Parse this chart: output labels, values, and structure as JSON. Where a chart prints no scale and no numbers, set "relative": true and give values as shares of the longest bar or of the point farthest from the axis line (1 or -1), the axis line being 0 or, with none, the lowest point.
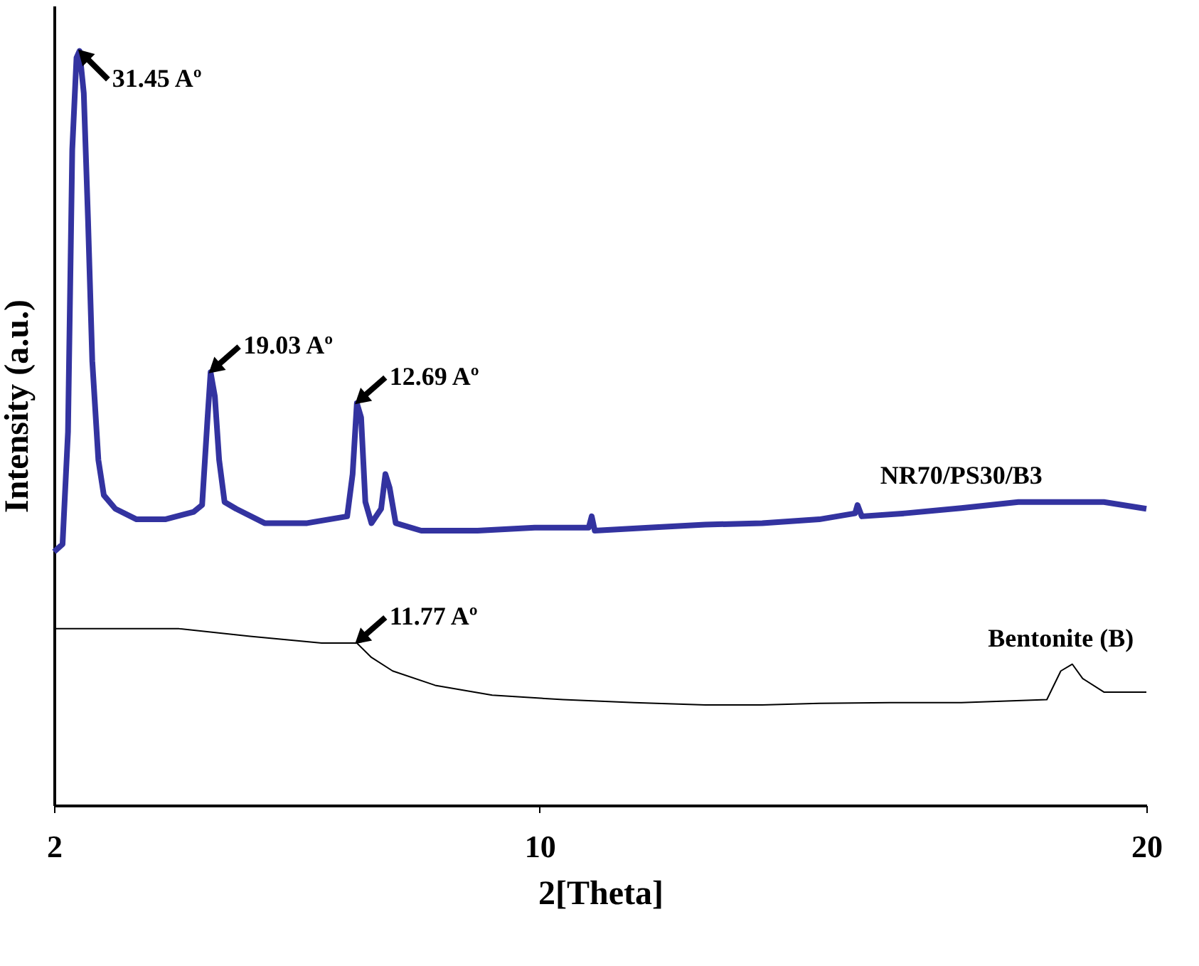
{
  "chart_data": {
    "type": "line",
    "xlabel": "2[Theta]",
    "ylabel": "Intensity (a.u.)",
    "relative": true,
    "xlim": [
      2,
      20
    ],
    "xticks": [
      2,
      10,
      20
    ],
    "grid": false,
    "legend": false,
    "marker": "none",
    "line_style": "solid",
    "tick_labels": "x",
    "series": [
      {
        "name": "NR70/PS30/B3",
        "color": "#3333a0",
        "x": [
          2,
          2.14,
          2.23,
          2.3,
          2.37,
          2.42,
          2.49,
          2.56,
          2.63,
          2.73,
          2.82,
          3.01,
          3.36,
          3.83,
          4.3,
          4.44,
          4.53,
          4.58,
          4.65,
          4.72,
          4.81,
          5.0,
          5.47,
          6.17,
          6.83,
          6.92,
          6.99,
          7.06,
          7.13,
          7.23,
          7.39,
          7.46,
          7.53,
          7.63,
          8.05,
          8.98,
          9.92,
          10.81,
          10.86,
          10.91,
          11.8,
          12.73,
          13.67,
          14.61,
          15.2,
          15.24,
          15.31,
          16.02,
          16.95,
          17.89,
          18.83,
          19.3,
          20
        ],
        "values": [
          0.336,
          0.346,
          0.495,
          0.869,
          0.991,
          1,
          0.944,
          0.776,
          0.589,
          0.458,
          0.411,
          0.393,
          0.379,
          0.379,
          0.389,
          0.398,
          0.514,
          0.574,
          0.542,
          0.458,
          0.402,
          0.393,
          0.374,
          0.374,
          0.383,
          0.439,
          0.533,
          0.514,
          0.402,
          0.374,
          0.393,
          0.439,
          0.421,
          0.374,
          0.364,
          0.364,
          0.368,
          0.368,
          0.383,
          0.364,
          0.368,
          0.372,
          0.374,
          0.379,
          0.387,
          0.398,
          0.383,
          0.387,
          0.394,
          0.402,
          0.402,
          0.402,
          0.393
        ]
      },
      {
        "name": "Bentonite (B)",
        "color": "#000000",
        "x": [
          2,
          2.89,
          4.06,
          5.23,
          6.41,
          6.99,
          7.23,
          7.58,
          8.28,
          9.22,
          10.39,
          11.56,
          12.73,
          13.67,
          14.61,
          15.78,
          16.95,
          18.36,
          18.59,
          18.78,
          18.95,
          19.3,
          20
        ],
        "values": [
          0.234,
          0.234,
          0.234,
          0.224,
          0.215,
          0.215,
          0.196,
          0.178,
          0.159,
          0.146,
          0.14,
          0.136,
          0.133,
          0.133,
          0.135,
          0.136,
          0.136,
          0.14,
          0.178,
          0.187,
          0.168,
          0.15,
          0.15
        ]
      }
    ],
    "annotations": [
      {
        "text": "31.45 Aº",
        "x": 2.42,
        "y": 1
      },
      {
        "text": "19.03 Aº",
        "x": 4.58,
        "y": 0.574
      },
      {
        "text": "12.69 Aº",
        "x": 6.99,
        "y": 0.533
      },
      {
        "text": "11.77 Aº",
        "x": 6.99,
        "y": 0.215
      }
    ]
  }
}
